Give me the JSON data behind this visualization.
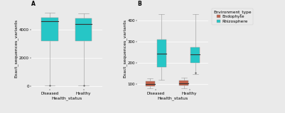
{
  "panel_A": {
    "title": "A",
    "ylabel": "Exact_sequences_variants",
    "xlabel": "Health_status",
    "categories": [
      "Diseased",
      "Healthy"
    ],
    "color": "#26C6C6",
    "boxes": [
      {
        "q1": 3200,
        "median": 4550,
        "q3": 4800,
        "whisker_low": 50,
        "whisker_high": 5150,
        "flier": 50
      },
      {
        "q1": 3200,
        "median": 4350,
        "q3": 4750,
        "whisker_low": 80,
        "whisker_high": 5100,
        "flier": 80
      }
    ],
    "ylim": [
      -200,
      5500
    ],
    "yticks": [
      0,
      2000,
      4000
    ]
  },
  "panel_B": {
    "title": "B",
    "ylabel": "Exact_sequences_variants",
    "xlabel": "Health_status",
    "categories": [
      "Diseased",
      "Healthy"
    ],
    "colors": {
      "Endophyte": "#C1614A",
      "Rhizosphere": "#26C6C6"
    },
    "boxes_rhizosphere": [
      {
        "q1": 180,
        "median": 245,
        "q3": 310,
        "whisker_low": 120,
        "whisker_high": 430,
        "flier": null
      },
      {
        "q1": 200,
        "median": 240,
        "q3": 275,
        "whisker_low": 145,
        "whisker_high": 430,
        "flier": 152
      }
    ],
    "boxes_endophyte": [
      {
        "q1": 90,
        "median": 100,
        "q3": 112,
        "whisker_low": 80,
        "whisker_high": 125,
        "flier": null
      },
      {
        "q1": 92,
        "median": 103,
        "q3": 115,
        "whisker_low": 80,
        "whisker_high": 130,
        "flier": null
      }
    ],
    "ylim": [
      75,
      460
    ],
    "yticks": [
      100,
      200,
      300,
      400
    ]
  },
  "bg_color": "#EAEAEA",
  "grid_color": "#FAFAFA",
  "font_size": 4.5,
  "tick_font_size": 4.0,
  "legend_font_size": 4.2
}
